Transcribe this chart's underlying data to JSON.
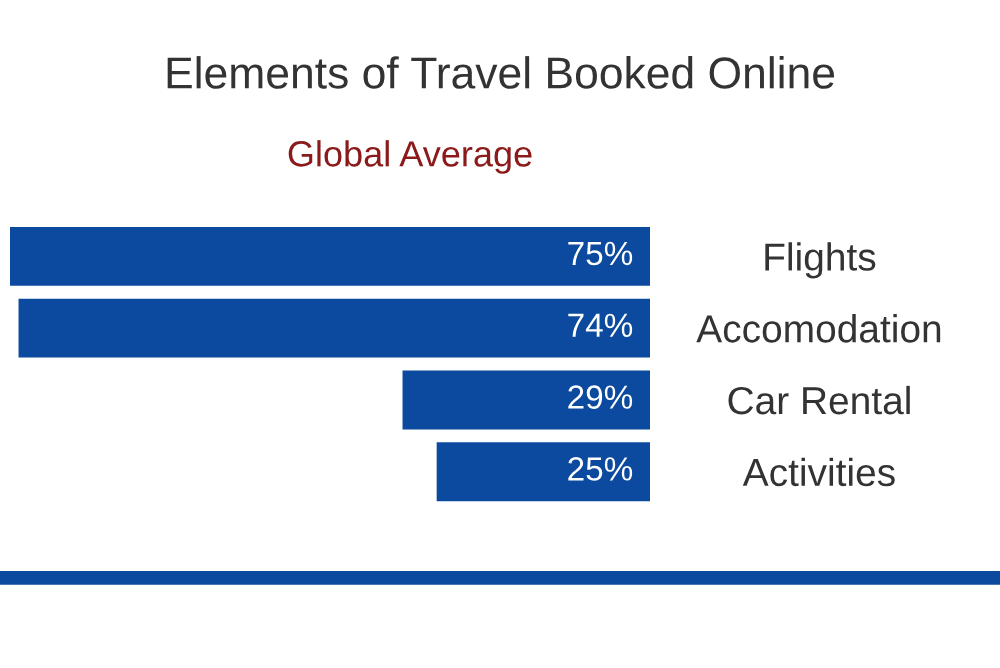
{
  "chart_data": {
    "type": "bar",
    "orientation": "horizontal",
    "title": "Elements of Travel Booked Online",
    "subtitle": "Global Average",
    "categories": [
      "Flights",
      "Accomodation",
      "Car Rental",
      "Activities"
    ],
    "values": [
      75,
      74,
      29,
      25
    ],
    "color": "#0b4a9e",
    "value_labels": [
      "75%",
      "74%",
      "29%",
      "25%"
    ],
    "grid": false,
    "legend": false
  }
}
